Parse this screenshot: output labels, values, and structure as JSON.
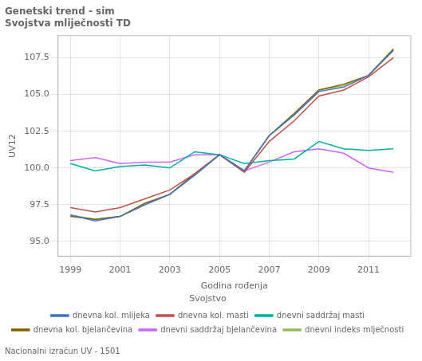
{
  "chart_data": {
    "type": "line",
    "title": "Genetski trend - sim",
    "subtitle": "Svojstva mliječnosti TD",
    "footnote": "Nacionalni izračun UV - 1501",
    "x_label": "Godina rođenja",
    "y_label": "UV12",
    "legend_title": "Svojstvo",
    "legend": "bottom",
    "grid": true,
    "x": [
      1999,
      2000,
      2001,
      2002,
      2003,
      2004,
      2005,
      2006,
      2007,
      2008,
      2009,
      2010,
      2011,
      2012
    ],
    "series": [
      {
        "name": "dnevna kol. mlijeka",
        "color": "#4472C4",
        "values": [
          96.8,
          96.4,
          96.7,
          97.5,
          98.2,
          99.5,
          100.9,
          99.8,
          102.2,
          103.6,
          105.2,
          105.5,
          106.3,
          108.0
        ]
      },
      {
        "name": "dnevna kol. masti",
        "color": "#C0504D",
        "values": [
          97.3,
          97.0,
          97.3,
          97.9,
          98.5,
          99.6,
          100.9,
          99.7,
          101.8,
          103.2,
          104.9,
          105.3,
          106.2,
          107.5
        ]
      },
      {
        "name": "dnevni saddržaj masti",
        "color": "#00B0A0",
        "values": [
          100.3,
          99.8,
          100.1,
          100.2,
          100.0,
          101.1,
          100.9,
          100.3,
          100.5,
          100.6,
          101.8,
          101.3,
          101.2,
          101.3
        ]
      },
      {
        "name": "dnevna kol. bjelančevina",
        "color": "#7F6000",
        "values": [
          96.7,
          96.5,
          96.7,
          97.6,
          98.2,
          99.6,
          100.9,
          99.8,
          102.2,
          103.7,
          105.3,
          105.7,
          106.3,
          108.1
        ]
      },
      {
        "name": "dnevni saddržaj bjelančevina",
        "color": "#CC66FF",
        "values": [
          100.5,
          100.7,
          100.3,
          100.4,
          100.4,
          100.9,
          100.9,
          99.8,
          100.4,
          101.1,
          101.3,
          101.0,
          100.0,
          99.7
        ]
      },
      {
        "name": "dnevni indeks mlječnosti",
        "color": "#9BBB59",
        "values": [
          96.8,
          96.5,
          96.7,
          97.5,
          98.2,
          99.5,
          100.9,
          99.8,
          102.2,
          103.6,
          105.3,
          105.6,
          106.3,
          108.1
        ]
      }
    ],
    "xlim": [
      1998.5,
      2012.7
    ],
    "xticks": [
      1999,
      2001,
      2003,
      2005,
      2007,
      2009,
      2011
    ],
    "ylim": [
      94.0,
      109.0
    ],
    "yticks": [
      {
        "value": 95.0,
        "label": "95.0"
      },
      97.5,
      {
        "value": 100.0,
        "label": "100.0"
      },
      102.5,
      {
        "value": 105.0,
        "label": "105.0"
      },
      107.5
    ]
  }
}
